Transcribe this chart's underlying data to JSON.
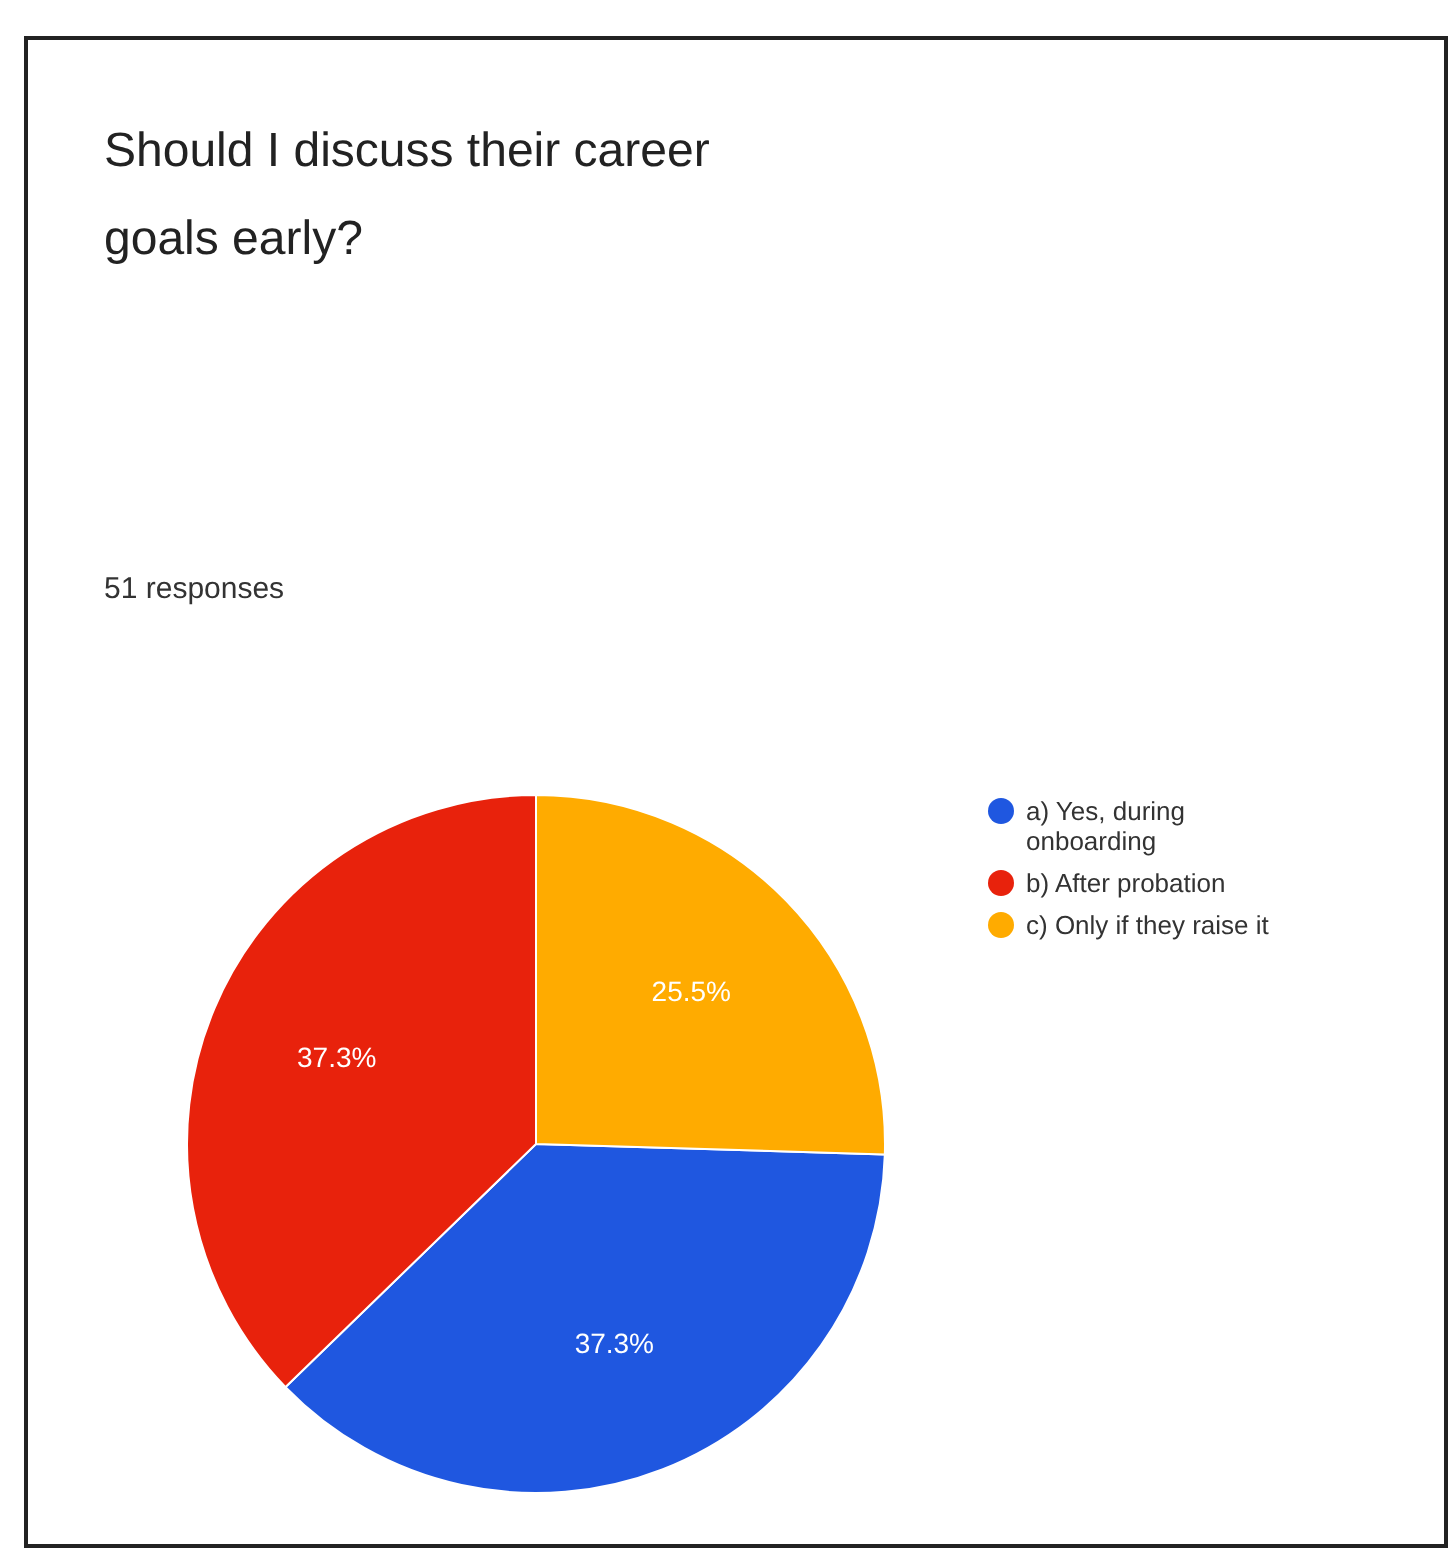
{
  "chart_data": {
    "type": "pie",
    "title": "Should I discuss their career goals early?",
    "subtitle": "51 responses",
    "categories": [
      "a) Yes, during onboarding",
      "b) After probation",
      "c) Only if they raise it"
    ],
    "values": [
      37.3,
      37.3,
      25.5
    ],
    "colors": [
      "#1f57e0",
      "#e8220c",
      "#ffab00"
    ],
    "value_labels": [
      "37.3%",
      "37.3%",
      "25.5%"
    ],
    "legend": "right"
  }
}
